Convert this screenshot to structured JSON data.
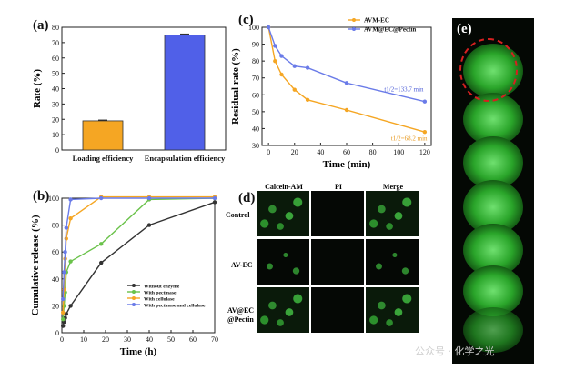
{
  "panels": {
    "a": "(a)",
    "b": "(b)",
    "c": "(c)",
    "d": "(d)",
    "e": "(e)"
  },
  "chart_data": [
    {
      "id": "a",
      "type": "bar",
      "categories": [
        "Loading efficiency",
        "Encapsulation efficiency"
      ],
      "values": [
        19,
        75
      ],
      "errors": [
        0.5,
        0.6
      ],
      "colors": [
        "#f5a623",
        "#5060e8"
      ],
      "ylabel": "Rate (%)",
      "ylim": [
        0,
        80
      ],
      "yticks": [
        0,
        10,
        20,
        30,
        40,
        50,
        60,
        70,
        80
      ]
    },
    {
      "id": "b",
      "type": "line",
      "xlabel": "Time (h)",
      "ylabel": "Cumulative release (%)",
      "xlim": [
        0,
        70
      ],
      "ylim": [
        0,
        100
      ],
      "xticks": [
        0,
        10,
        20,
        30,
        40,
        50,
        60,
        70
      ],
      "yticks": [
        0,
        20,
        40,
        60,
        80,
        100
      ],
      "legend_position": "bottom-right",
      "series": [
        {
          "name": "Without enzyme",
          "color": "#333333",
          "x": [
            0.5,
            1,
            1.5,
            2,
            4,
            18,
            40,
            70
          ],
          "y": [
            5,
            8,
            11,
            14,
            20,
            52,
            80,
            97
          ]
        },
        {
          "name": "With pectinase",
          "color": "#6ac24a",
          "x": [
            0.5,
            1,
            1.5,
            2,
            4,
            18,
            40,
            70
          ],
          "y": [
            10,
            20,
            30,
            45,
            53,
            66,
            99,
            100
          ]
        },
        {
          "name": "With cellulase",
          "color": "#f5a623",
          "x": [
            0.5,
            1,
            1.5,
            2,
            4,
            18,
            40,
            70
          ],
          "y": [
            15,
            32,
            55,
            70,
            85,
            101,
            101,
            101
          ]
        },
        {
          "name": "With pectinase and cellulase",
          "color": "#6a7be8",
          "x": [
            0.5,
            1,
            1.5,
            2,
            4,
            18,
            40,
            70
          ],
          "y": [
            25,
            45,
            60,
            78,
            99,
            100,
            100,
            100
          ]
        }
      ]
    },
    {
      "id": "c",
      "type": "line",
      "xlabel": "Time (min)",
      "ylabel": "Residual rate (%)",
      "xlim": [
        -5,
        125
      ],
      "ylim": [
        30,
        100
      ],
      "xticks": [
        0,
        20,
        40,
        60,
        80,
        100,
        120
      ],
      "yticks": [
        30,
        40,
        50,
        60,
        70,
        80,
        90,
        100
      ],
      "legend_position": "top-right",
      "series": [
        {
          "name": "AVM-EC",
          "color": "#f5a623",
          "x": [
            0,
            5,
            10,
            20,
            30,
            60,
            120
          ],
          "y": [
            100,
            80,
            72,
            63,
            57,
            51,
            38
          ]
        },
        {
          "name": "AVM@EC@Pectin",
          "color": "#6a7be8",
          "x": [
            0,
            5,
            10,
            20,
            30,
            60,
            120
          ],
          "y": [
            100,
            89,
            83,
            77,
            76,
            67,
            56
          ]
        }
      ],
      "annotations": [
        {
          "text": "t1/2=133.7 min",
          "color": "#5060d8",
          "x": 104,
          "y": 62
        },
        {
          "text": "t1/2=68.2 min",
          "color": "#e89a20",
          "x": 108,
          "y": 33
        }
      ]
    }
  ],
  "microscopy": {
    "columns": [
      "Calcein-AM",
      "PI",
      "Merge"
    ],
    "rows": [
      "Control",
      "AV-EC",
      "AV@EC",
      "@Pectin"
    ]
  },
  "watermark": "公众号 · 化学之光"
}
